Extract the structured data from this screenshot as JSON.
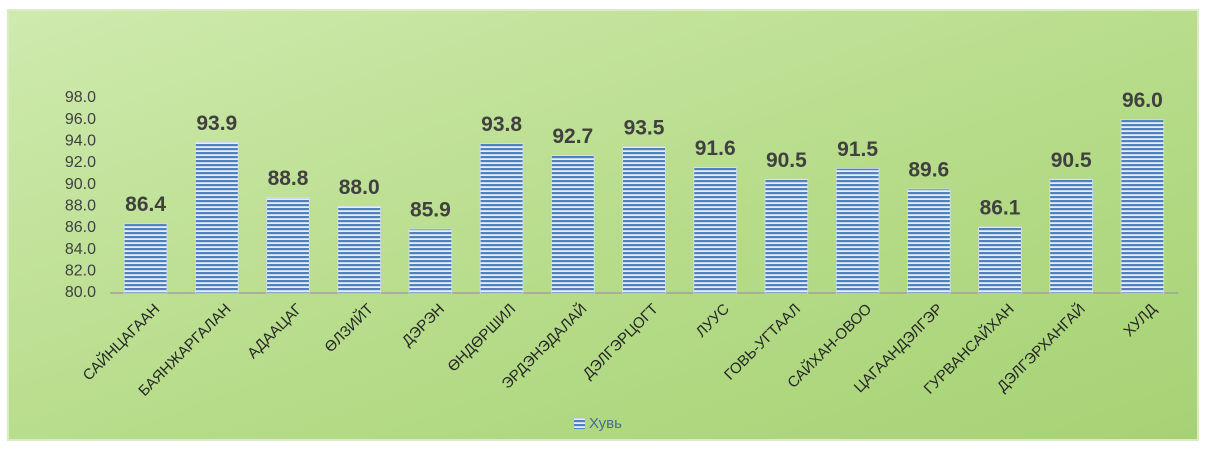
{
  "chart_data": {
    "type": "bar",
    "categories": [
      "САЙНЦАГААН",
      "БАЯНЖАРГАЛАН",
      "АДААЦАГ",
      "ӨЛЗИЙТ",
      "ДЭРЭН",
      "ӨНДӨРШИЛ",
      "ЭРДЭНЭДАЛАЙ",
      "ДЭЛГЭРЦОГТ",
      "ЛУУС",
      "ГОВЬ-УГТААЛ",
      "САЙХАН-ОВОО",
      "ЦАГААНДЭЛГЭР",
      "ГУРВАНСАЙХАН",
      "ДЭЛГЭРХАНГАЙ",
      "ХУЛД"
    ],
    "series": [
      {
        "name": "Хувь",
        "color": "#4f81bd",
        "values": [
          86.4,
          93.9,
          88.8,
          88.0,
          85.9,
          93.8,
          92.7,
          93.5,
          91.6,
          90.5,
          91.5,
          89.6,
          86.1,
          90.5,
          96.0
        ],
        "value_labels": [
          "86.4",
          "93.9",
          "88.8",
          "88.0",
          "85.9",
          "93.8",
          "92.7",
          "93.5",
          "91.6",
          "90.5",
          "91.5",
          "89.6",
          "86.1",
          "90.5",
          "96.0"
        ]
      }
    ],
    "ylim": [
      80,
      98
    ],
    "yticks": [
      {
        "value": 80,
        "label": "80.0"
      },
      {
        "value": 82,
        "label": "82.0"
      },
      {
        "value": 84,
        "label": "84.0"
      },
      {
        "value": 86,
        "label": "86.0"
      },
      {
        "value": 88,
        "label": "88.0"
      },
      {
        "value": 90,
        "label": "90.0"
      },
      {
        "value": 92,
        "label": "92.0"
      },
      {
        "value": 94,
        "label": "94.0"
      },
      {
        "value": 96,
        "label": "96.0"
      },
      {
        "value": 98,
        "label": "98.0"
      }
    ],
    "grid": false,
    "legend": "bottom"
  }
}
